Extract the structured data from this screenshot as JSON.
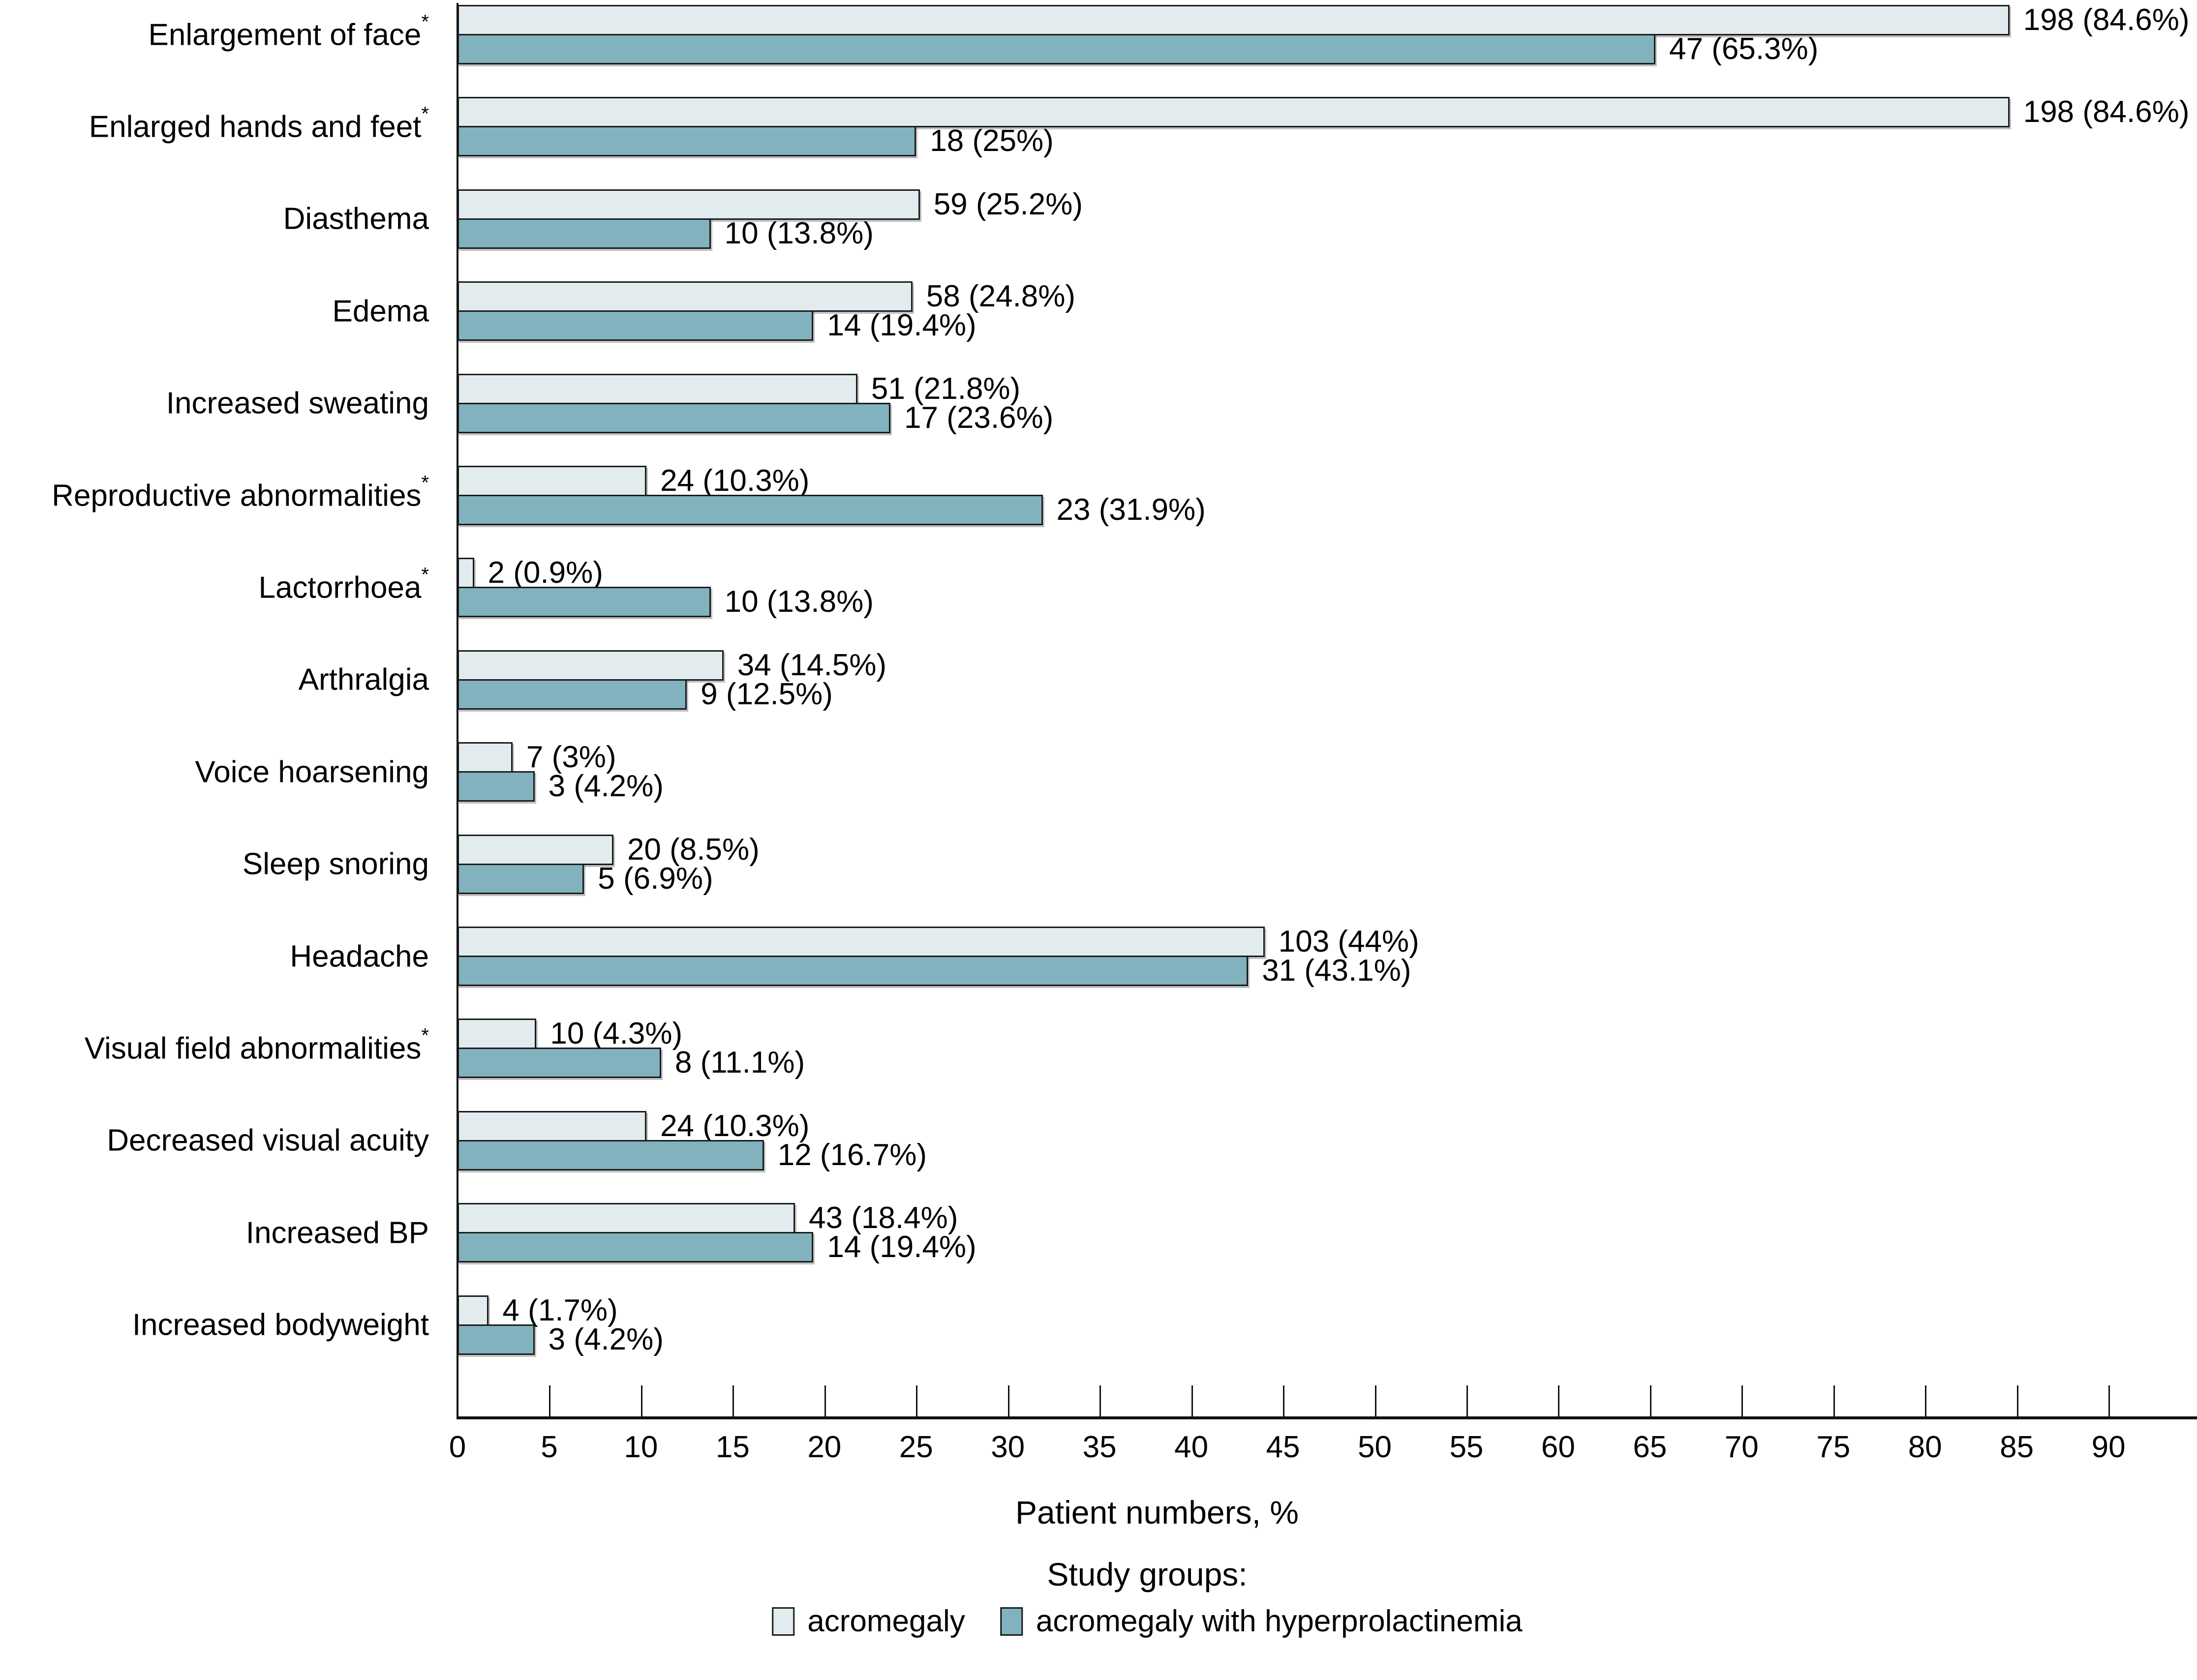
{
  "chart_data": {
    "type": "bar",
    "orientation": "horizontal",
    "title": "",
    "xlabel": "Patient numbers, %",
    "ylabel": "",
    "grid": false,
    "x_axis": {
      "min": 0,
      "max": 90,
      "tick_step": 5,
      "ticks": [
        0,
        5,
        10,
        15,
        20,
        25,
        30,
        35,
        40,
        45,
        50,
        55,
        60,
        65,
        70,
        75,
        80,
        85,
        90
      ]
    },
    "categories": [
      {
        "label": "Enlargement of face",
        "suffix": "*"
      },
      {
        "label": "Enlarged hands and feet",
        "suffix": "*"
      },
      {
        "label": "Diasthema",
        "suffix": ""
      },
      {
        "label": "Edema",
        "suffix": ""
      },
      {
        "label": "Increased sweating",
        "suffix": ""
      },
      {
        "label": "Reproductive abnormalities",
        "suffix": "*"
      },
      {
        "label": "Lactorrhoea",
        "suffix": "*"
      },
      {
        "label": "Arthralgia",
        "suffix": ""
      },
      {
        "label": "Voice hoarsening",
        "suffix": ""
      },
      {
        "label": "Sleep snoring",
        "suffix": ""
      },
      {
        "label": "Headache",
        "suffix": ""
      },
      {
        "label": "Visual field abnormalities",
        "suffix": "*"
      },
      {
        "label": "Decreased visual acuity",
        "suffix": ""
      },
      {
        "label": "Increased BP",
        "suffix": ""
      },
      {
        "label": "Increased bodyweight",
        "suffix": ""
      }
    ],
    "series": [
      {
        "name": "acromegaly",
        "color": "#e2ebee",
        "values": [
          {
            "n": 198,
            "pct": 84.6,
            "label": "198 (84.6%)"
          },
          {
            "n": 198,
            "pct": 84.6,
            "label": "198 (84.6%)"
          },
          {
            "n": 59,
            "pct": 25.2,
            "label": "59 (25.2%)"
          },
          {
            "n": 58,
            "pct": 24.8,
            "label": "58 (24.8%)"
          },
          {
            "n": 51,
            "pct": 21.8,
            "label": "51 (21.8%)"
          },
          {
            "n": 24,
            "pct": 10.3,
            "label": "24 (10.3%)"
          },
          {
            "n": 2,
            "pct": 0.9,
            "label": "2 (0.9%)"
          },
          {
            "n": 34,
            "pct": 14.5,
            "label": "34 (14.5%)"
          },
          {
            "n": 7,
            "pct": 3,
            "label": "7 (3%)"
          },
          {
            "n": 20,
            "pct": 8.5,
            "label": "20 (8.5%)"
          },
          {
            "n": 103,
            "pct": 44,
            "label": "103 (44%)"
          },
          {
            "n": 10,
            "pct": 4.3,
            "label": "10 (4.3%)"
          },
          {
            "n": 24,
            "pct": 10.3,
            "label": "24 (10.3%)"
          },
          {
            "n": 43,
            "pct": 18.4,
            "label": "43 (18.4%)"
          },
          {
            "n": 4,
            "pct": 1.7,
            "label": "4 (1.7%)"
          }
        ]
      },
      {
        "name": "acromegaly with hyperprolactinemia",
        "color": "#82b2bd",
        "values": [
          {
            "n": 47,
            "pct": 65.3,
            "label": "47 (65.3%)"
          },
          {
            "n": 18,
            "pct": 25,
            "label": "18 (25%)"
          },
          {
            "n": 10,
            "pct": 13.8,
            "label": "10 (13.8%)"
          },
          {
            "n": 14,
            "pct": 19.4,
            "label": "14 (19.4%)"
          },
          {
            "n": 17,
            "pct": 23.6,
            "label": "17 (23.6%)"
          },
          {
            "n": 23,
            "pct": 31.9,
            "label": "23 (31.9%)"
          },
          {
            "n": 10,
            "pct": 13.8,
            "label": "10 (13.8%)"
          },
          {
            "n": 9,
            "pct": 12.5,
            "label": "9 (12.5%)"
          },
          {
            "n": 3,
            "pct": 4.2,
            "label": "3 (4.2%)"
          },
          {
            "n": 5,
            "pct": 6.9,
            "label": "5 (6.9%)"
          },
          {
            "n": 31,
            "pct": 43.1,
            "label": "31 (43.1%)"
          },
          {
            "n": 8,
            "pct": 11.1,
            "label": "8 (11.1%)"
          },
          {
            "n": 12,
            "pct": 16.7,
            "label": "12 (16.7%)"
          },
          {
            "n": 14,
            "pct": 19.4,
            "label": "14 (19.4%)"
          },
          {
            "n": 3,
            "pct": 4.2,
            "label": "3 (4.2%)"
          }
        ]
      }
    ],
    "legend": {
      "title": "Study groups:",
      "position": "bottom",
      "items": [
        "acromegaly",
        "acromegaly with hyperprolactinemia"
      ]
    }
  }
}
